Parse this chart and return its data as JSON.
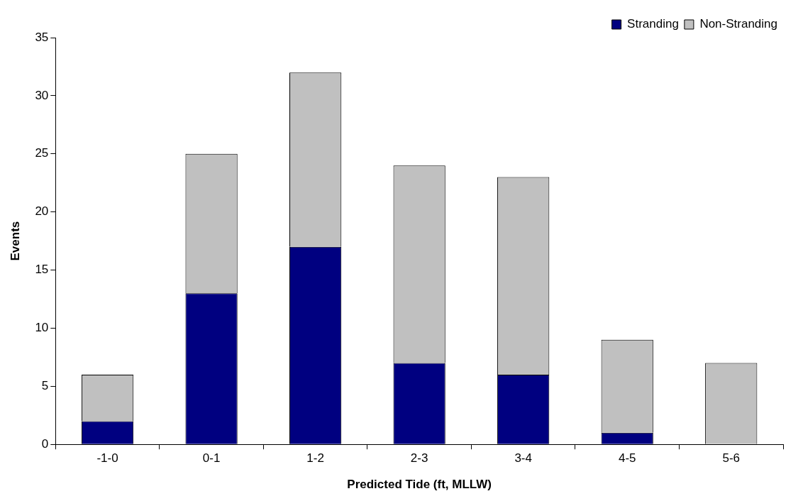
{
  "chart_data": {
    "type": "bar",
    "xlabel": "Predicted Tide (ft, MLLW)",
    "ylabel": "Events",
    "categories": [
      "-1-0",
      "0-1",
      "1-2",
      "2-3",
      "3-4",
      "4-5",
      "5-6"
    ],
    "series": [
      {
        "name": "Stranding",
        "color": "#000080",
        "values": [
          2,
          13,
          17,
          7,
          6,
          1,
          0
        ]
      },
      {
        "name": "Non-Stranding",
        "color": "#c0c0c0",
        "values": [
          4,
          12,
          15,
          17,
          17,
          8,
          7
        ]
      }
    ],
    "stacked": true,
    "ylim": [
      0,
      35
    ],
    "yticks": [
      0,
      5,
      10,
      15,
      20,
      25,
      30,
      35
    ],
    "grid": false,
    "legend": "top right"
  }
}
